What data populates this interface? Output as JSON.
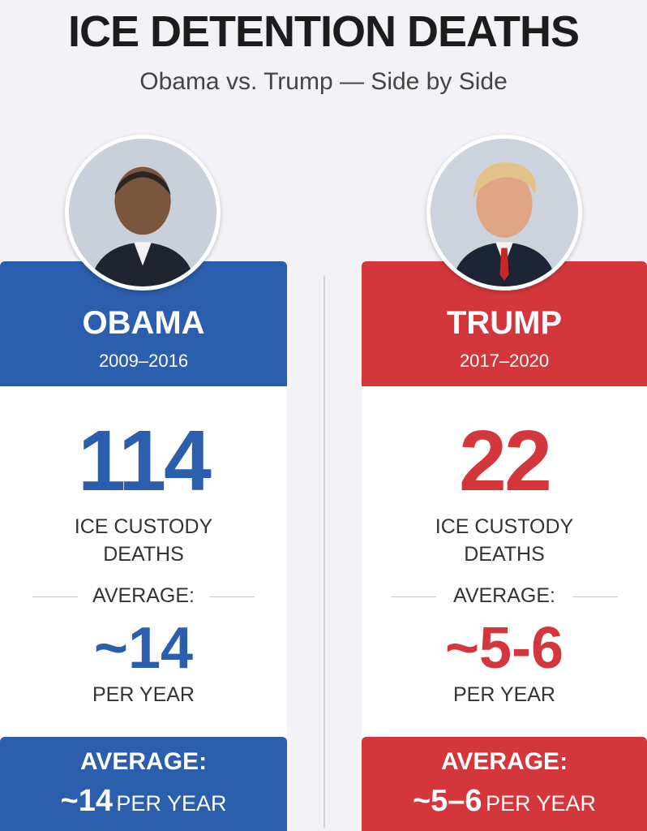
{
  "title": "ICE DETENTION DEATHS",
  "subtitle": "Obama vs. Trump — Side by Side",
  "colors": {
    "blue": "#2b5eac",
    "red": "#d3373b"
  },
  "left": {
    "name": "OBAMA",
    "years": "2009–2016",
    "deaths": "114",
    "deaths_label_line1": "ICE CUSTODY",
    "deaths_label_line2": "DEATHS",
    "average_label": "AVERAGE:",
    "average_value": "~14",
    "per_year": "PER YEAR",
    "footer_title": "AVERAGE:",
    "footer_value": "~14",
    "footer_unit": "PER YEAR"
  },
  "right": {
    "name": "TRUMP",
    "years": "2017–2020",
    "deaths": "22",
    "deaths_label_line1": "ICE CUSTODY",
    "deaths_label_line2": "DEATHS",
    "average_label": "AVERAGE:",
    "average_value": "~5-6",
    "per_year": "PER YEAR",
    "footer_title": "AVERAGE:",
    "footer_value": "~5–6",
    "footer_unit": "PER YEAR"
  }
}
